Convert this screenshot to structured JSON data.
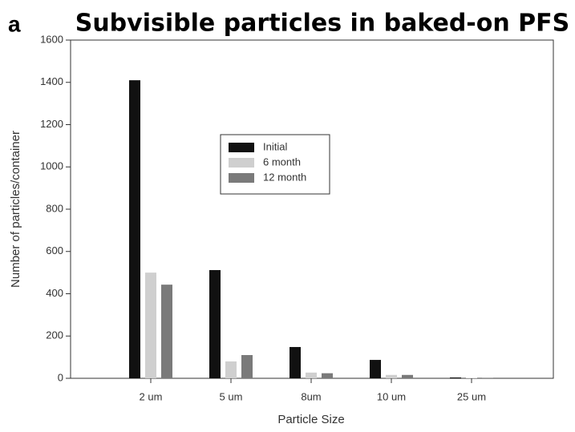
{
  "chart_data": {
    "type": "bar",
    "panel_label": "a",
    "title": "Subvisible particles in baked-on PFS",
    "x_label": "Particle Size",
    "y_label": "Number of particles/container",
    "categories": [
      "2 um",
      "5 um",
      "8um",
      "10 um",
      "25 um"
    ],
    "series": [
      {
        "name": "Initial",
        "color": "#111111",
        "values": [
          1410,
          512,
          148,
          87,
          4
        ]
      },
      {
        "name": "6 month",
        "color": "#cfcfcf",
        "values": [
          500,
          80,
          27,
          16,
          2
        ]
      },
      {
        "name": "12 month",
        "color": "#7a7a7a",
        "values": [
          443,
          110,
          24,
          16,
          1
        ]
      }
    ],
    "ylim": [
      0,
      1600
    ],
    "yticks": [
      0,
      200,
      400,
      600,
      800,
      1000,
      1200,
      1400,
      1600
    ],
    "grid": false,
    "legend": "center"
  }
}
